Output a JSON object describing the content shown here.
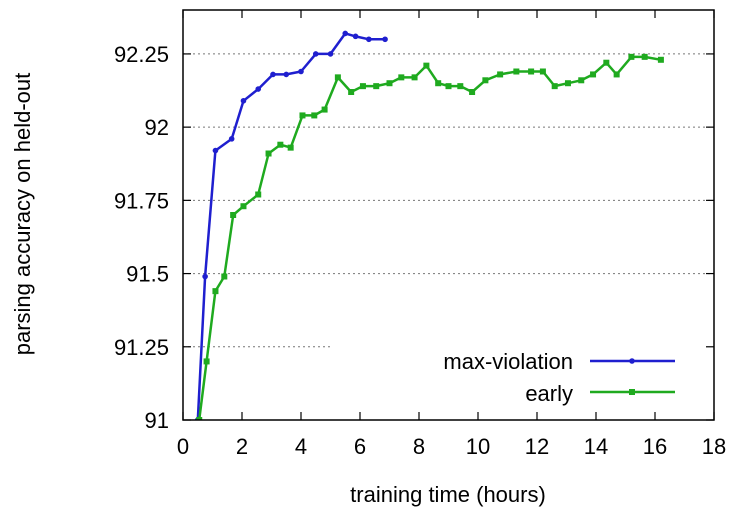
{
  "chart_data": {
    "type": "line",
    "title": "",
    "xlabel": "training time (hours)",
    "ylabel": "parsing accuracy on held-out",
    "xlim": [
      0,
      18
    ],
    "ylim": [
      91,
      92.4
    ],
    "xticks": [
      0,
      2,
      4,
      6,
      8,
      10,
      12,
      14,
      16,
      18
    ],
    "yticks": [
      91,
      91.25,
      91.5,
      91.75,
      92,
      92.25
    ],
    "ytick_labels": [
      "91",
      "91.25",
      "91.5",
      "91.75",
      "92",
      "92.25"
    ],
    "grid": "horizontal dotted",
    "legend_position": "bottom-right",
    "series": [
      {
        "name": "max-violation",
        "color": "#1f1fcf",
        "marker": "circle",
        "x": [
          0.5,
          0.75,
          1.1,
          1.65,
          2.05,
          2.55,
          3.05,
          3.5,
          4.0,
          4.5,
          5.0,
          5.5,
          5.85,
          6.3,
          6.85
        ],
        "y": [
          91.0,
          91.49,
          91.92,
          91.96,
          92.09,
          92.13,
          92.18,
          92.18,
          92.19,
          92.25,
          92.25,
          92.32,
          92.31,
          92.3,
          92.3
        ]
      },
      {
        "name": "early",
        "color": "#1faa1f",
        "marker": "square",
        "x": [
          0.55,
          0.8,
          1.1,
          1.4,
          1.7,
          2.05,
          2.55,
          2.9,
          3.3,
          3.65,
          4.05,
          4.45,
          4.8,
          5.25,
          5.7,
          6.1,
          6.55,
          7.0,
          7.4,
          7.85,
          8.25,
          8.65,
          9.0,
          9.4,
          9.8,
          10.25,
          10.75,
          11.3,
          11.8,
          12.2,
          12.6,
          13.05,
          13.5,
          13.9,
          14.35,
          14.7,
          15.2,
          15.65,
          16.2
        ],
        "y": [
          91.0,
          91.2,
          91.44,
          91.49,
          91.7,
          91.73,
          91.77,
          91.91,
          91.94,
          91.93,
          92.04,
          92.04,
          92.06,
          92.17,
          92.12,
          92.14,
          92.14,
          92.15,
          92.17,
          92.17,
          92.21,
          92.15,
          92.14,
          92.14,
          92.12,
          92.16,
          92.18,
          92.19,
          92.19,
          92.19,
          92.14,
          92.15,
          92.16,
          92.18,
          92.22,
          92.18,
          92.24,
          92.24,
          92.23
        ]
      }
    ]
  }
}
